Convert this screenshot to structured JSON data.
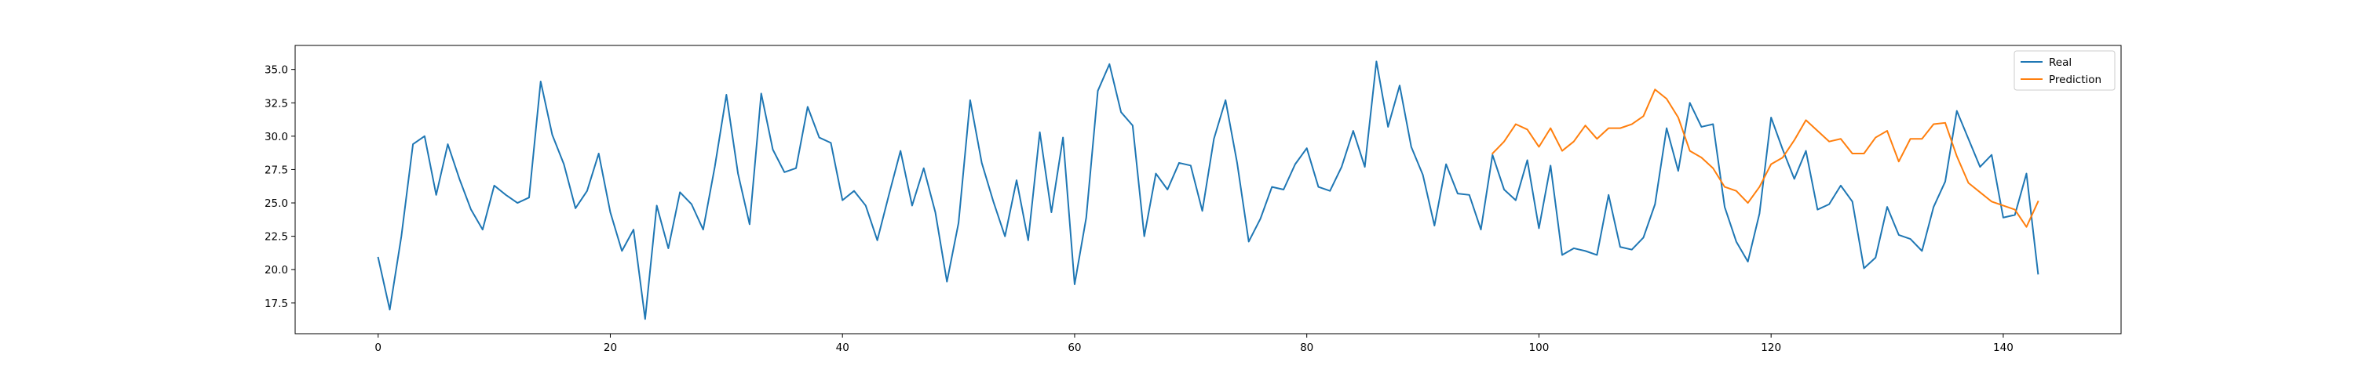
{
  "chart_data": {
    "type": "line",
    "title": "",
    "xlabel": "",
    "ylabel": "",
    "xlim": [
      -7.15,
      150.15
    ],
    "ylim": [
      15.2,
      36.8
    ],
    "xticks": [
      0,
      20,
      40,
      60,
      80,
      100,
      120,
      140
    ],
    "yticks": [
      17.5,
      20.0,
      22.5,
      25.0,
      27.5,
      30.0,
      32.5,
      35.0
    ],
    "xtick_labels": [
      "0",
      "20",
      "40",
      "60",
      "80",
      "100",
      "120",
      "140"
    ],
    "ytick_labels": [
      "17.5",
      "20.0",
      "22.5",
      "25.0",
      "27.5",
      "30.0",
      "32.5",
      "35.0"
    ],
    "grid": false,
    "legend_position": "top-right",
    "series": [
      {
        "name": "Real",
        "color": "#1f77b4",
        "x_start": 0,
        "values": [
          20.9,
          17.0,
          22.5,
          29.4,
          30.0,
          25.6,
          29.4,
          26.8,
          24.5,
          23.0,
          26.3,
          25.6,
          25.0,
          25.4,
          34.1,
          30.1,
          27.9,
          24.6,
          25.9,
          28.7,
          24.3,
          21.4,
          23.0,
          16.3,
          24.8,
          21.6,
          25.8,
          24.9,
          23.0,
          27.7,
          33.1,
          27.2,
          23.4,
          33.2,
          29.0,
          27.3,
          27.6,
          32.2,
          29.9,
          29.5,
          25.2,
          25.9,
          24.8,
          22.2,
          25.6,
          28.9,
          24.8,
          27.6,
          24.3,
          19.1,
          23.5,
          32.7,
          28.0,
          25.1,
          22.5,
          26.7,
          22.2,
          30.3,
          24.3,
          29.9,
          18.9,
          23.9,
          33.4,
          35.4,
          31.8,
          30.8,
          22.5,
          27.2,
          26.0,
          28.0,
          27.8,
          24.4,
          29.8,
          32.7,
          28.0,
          22.1,
          23.8,
          26.2,
          26.0,
          27.9,
          29.1,
          26.2,
          25.9,
          27.7,
          30.4,
          27.7,
          35.6,
          30.7,
          33.8,
          29.2,
          27.1,
          23.3,
          27.9,
          25.7,
          25.6,
          23.0,
          28.6,
          26.0,
          25.2,
          28.2,
          23.1,
          27.8,
          21.1,
          21.6,
          21.4,
          21.1,
          25.6,
          21.7,
          21.5,
          22.4,
          24.9,
          30.6,
          27.4,
          32.5,
          30.7,
          30.9,
          24.7,
          22.1,
          20.6,
          24.2,
          31.4,
          29.0,
          26.8,
          28.9,
          24.5,
          24.9,
          26.3,
          25.1,
          20.1,
          20.9,
          24.7,
          22.6,
          22.3,
          21.4,
          24.7,
          26.6,
          31.9,
          29.8,
          27.7,
          28.6,
          23.9,
          24.1,
          27.2,
          19.7
        ]
      },
      {
        "name": "Prediction",
        "color": "#ff7f0e",
        "x_start": 96,
        "values": [
          28.7,
          29.6,
          30.9,
          30.5,
          29.2,
          30.6,
          28.9,
          29.6,
          30.8,
          29.8,
          30.6,
          30.6,
          30.9,
          31.5,
          33.5,
          32.8,
          31.4,
          28.9,
          28.4,
          27.6,
          26.2,
          25.9,
          25.0,
          26.2,
          27.9,
          28.4,
          29.7,
          31.2,
          30.4,
          29.6,
          29.8,
          28.7,
          28.7,
          29.9,
          30.4,
          28.1,
          29.8,
          29.8,
          30.9,
          31.0,
          28.5,
          26.5,
          25.8,
          25.1,
          24.8,
          24.5,
          23.2,
          25.1
        ]
      }
    ]
  }
}
